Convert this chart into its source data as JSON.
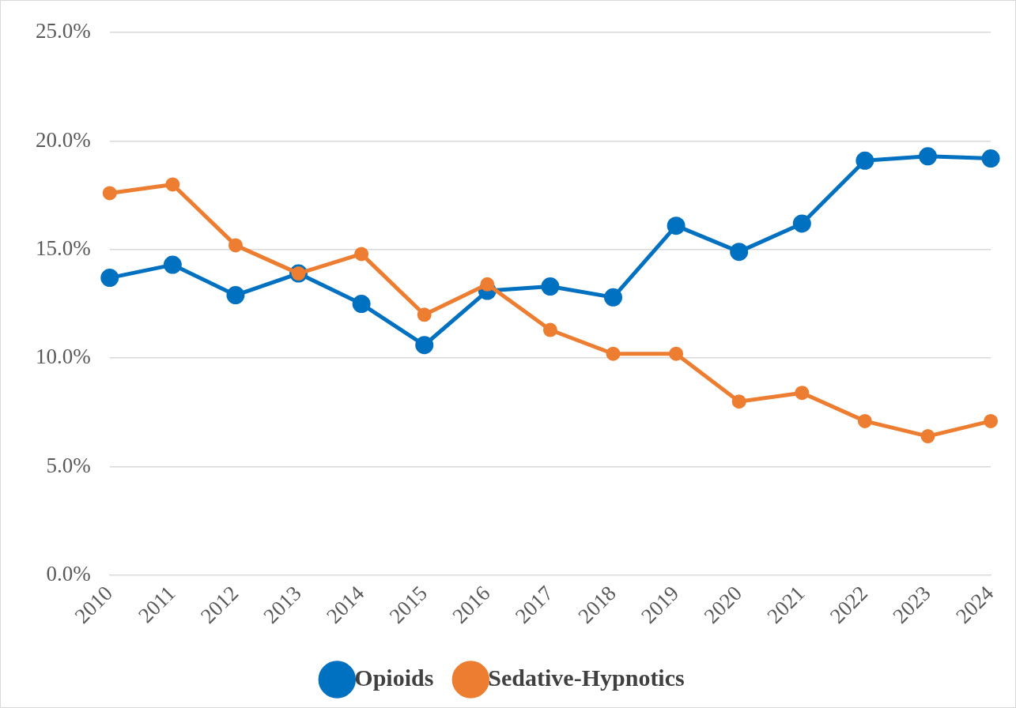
{
  "chart_data": {
    "type": "line",
    "categories": [
      "2010",
      "2011",
      "2012",
      "2013",
      "2014",
      "2015",
      "2016",
      "2017",
      "2018",
      "2019",
      "2020",
      "2021",
      "2022",
      "2023",
      "2024"
    ],
    "series": [
      {
        "name": "Opioids",
        "color": "#0070c0",
        "values": [
          13.7,
          14.3,
          12.9,
          13.9,
          12.5,
          10.6,
          13.1,
          13.3,
          12.8,
          16.1,
          14.9,
          16.2,
          19.1,
          19.3,
          19.2
        ]
      },
      {
        "name": "Sedative-Hypnotics",
        "color": "#ed7d31",
        "values": [
          17.6,
          18.0,
          15.2,
          13.9,
          14.8,
          12.0,
          13.4,
          11.3,
          10.2,
          10.2,
          8.0,
          8.4,
          7.1,
          6.4,
          7.1
        ]
      }
    ],
    "ylim": [
      0,
      25
    ],
    "yticks": [
      {
        "value": 0,
        "label": "0.0%"
      },
      {
        "value": 5,
        "label": "5.0%"
      },
      {
        "value": 10,
        "label": "10.0%"
      },
      {
        "value": 15,
        "label": "15.0%"
      },
      {
        "value": 20,
        "label": "20.0%"
      },
      {
        "value": 25,
        "label": "25.0%"
      }
    ],
    "grid": "y",
    "legend": "bottom",
    "marker": "circle",
    "line_style": "solid"
  }
}
